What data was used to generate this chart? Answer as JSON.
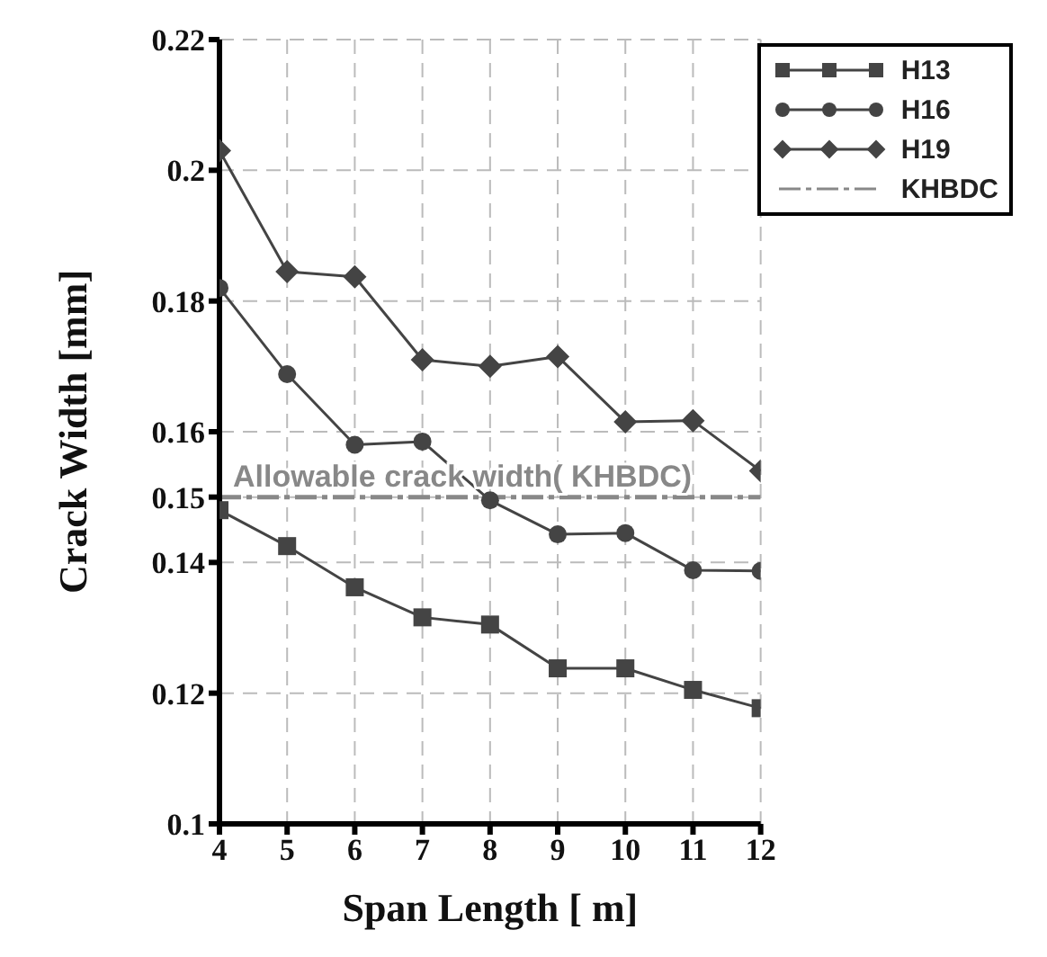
{
  "chart_data": {
    "type": "line",
    "xlabel": "Span Length [ m]",
    "ylabel": "Crack Width [mm]",
    "x": [
      4,
      5,
      6,
      7,
      8,
      9,
      10,
      11,
      12
    ],
    "series": [
      {
        "name": "H13",
        "color": "#444444",
        "marker": "square",
        "values": [
          0.148,
          0.1425,
          0.1362,
          0.1316,
          0.1305,
          0.1238,
          0.1238,
          0.1205,
          0.1177
        ]
      },
      {
        "name": "H16",
        "color": "#444444",
        "marker": "circle",
        "values": [
          0.182,
          0.1688,
          0.158,
          0.1585,
          0.1495,
          0.1443,
          0.1445,
          0.1388,
          0.1387
        ]
      },
      {
        "name": "H19",
        "color": "#444444",
        "marker": "diamond",
        "values": [
          0.203,
          0.1845,
          0.1837,
          0.171,
          0.17,
          0.1715,
          0.1615,
          0.1617,
          0.154
        ]
      },
      {
        "name": "KHBDC",
        "color": "#888888",
        "marker": "none",
        "line_style": "dashed",
        "x": [
          4,
          12
        ],
        "values": [
          0.15,
          0.15
        ]
      }
    ],
    "annotations": [
      {
        "text": "Allowable crack width( KHBDC)",
        "x": 4.2,
        "y": 0.15
      }
    ],
    "xlim": [
      4,
      12
    ],
    "xticks": [
      4,
      5,
      6,
      7,
      8,
      9,
      10,
      11,
      12
    ],
    "ylim": [
      0.1,
      0.22
    ],
    "yticks": [
      0.1,
      0.12,
      0.14,
      0.15,
      0.16,
      0.18,
      0.2,
      0.22
    ],
    "grid": true,
    "legend": "top right"
  }
}
